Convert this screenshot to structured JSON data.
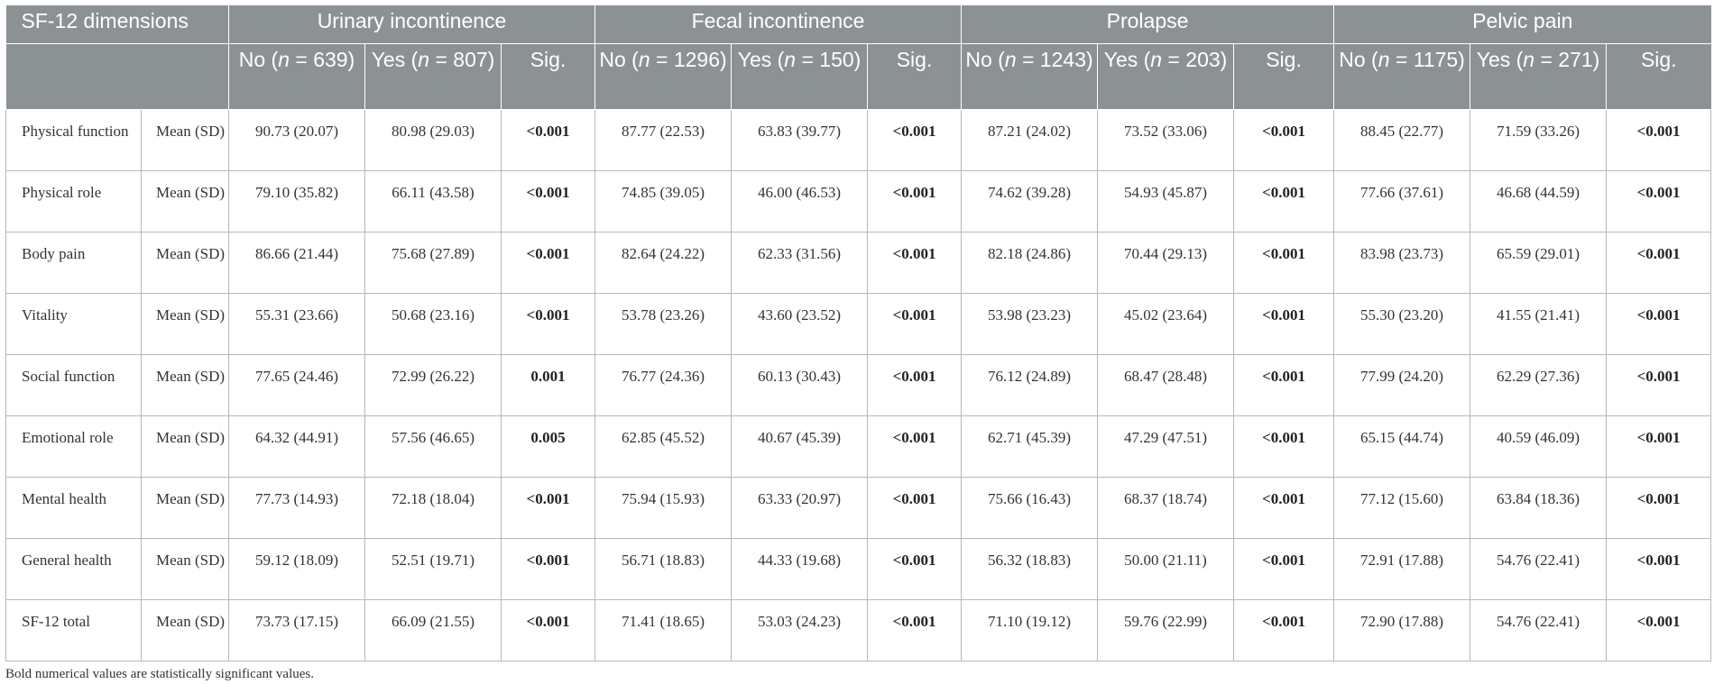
{
  "header": {
    "dim_label": "SF-12 dimensions",
    "groups": [
      "Urinary incontinence",
      "Fecal incontinence",
      "Prolapse",
      "Pelvic pain"
    ],
    "sub": [
      {
        "no_pre": "No (",
        "no_n": "n",
        "no_post": " = 639)",
        "yes_pre": "Yes (",
        "yes_n": "n",
        "yes_post": " = 807)",
        "sig": "Sig."
      },
      {
        "no_pre": "No (",
        "no_n": "n",
        "no_post": " = 1296)",
        "yes_pre": "Yes (",
        "yes_n": "n",
        "yes_post": " = 150)",
        "sig": "Sig."
      },
      {
        "no_pre": "No (",
        "no_n": "n",
        "no_post": " = 1243)",
        "yes_pre": "Yes (",
        "yes_n": "n",
        "yes_post": " = 203)",
        "sig": "Sig."
      },
      {
        "no_pre": "No (",
        "no_n": "n",
        "no_post": " = 1175)",
        "yes_pre": "Yes (",
        "yes_n": "n",
        "yes_post": " = 271)",
        "sig": "Sig."
      }
    ]
  },
  "rows": [
    {
      "name": "Physical function",
      "stat": "Mean (SD)",
      "cells": [
        "90.73 (20.07)",
        "80.98 (29.03)",
        "<0.001",
        "87.77 (22.53)",
        "63.83 (39.77)",
        "<0.001",
        "87.21 (24.02)",
        "73.52 (33.06)",
        "<0.001",
        "88.45 (22.77)",
        "71.59 (33.26)",
        "<0.001"
      ]
    },
    {
      "name": "Physical role",
      "stat": "Mean (SD)",
      "cells": [
        "79.10 (35.82)",
        "66.11 (43.58)",
        "<0.001",
        "74.85 (39.05)",
        "46.00 (46.53)",
        "<0.001",
        "74.62 (39.28)",
        "54.93 (45.87)",
        "<0.001",
        "77.66 (37.61)",
        "46.68 (44.59)",
        "<0.001"
      ]
    },
    {
      "name": "Body pain",
      "stat": "Mean (SD)",
      "cells": [
        "86.66 (21.44)",
        "75.68 (27.89)",
        "<0.001",
        "82.64 (24.22)",
        "62.33 (31.56)",
        "<0.001",
        "82.18 (24.86)",
        "70.44 (29.13)",
        "<0.001",
        "83.98 (23.73)",
        "65.59 (29.01)",
        "<0.001"
      ]
    },
    {
      "name": "Vitality",
      "stat": "Mean (SD)",
      "cells": [
        "55.31 (23.66)",
        "50.68 (23.16)",
        "<0.001",
        "53.78 (23.26)",
        "43.60 (23.52)",
        "<0.001",
        "53.98 (23.23)",
        "45.02 (23.64)",
        "<0.001",
        "55.30 (23.20)",
        "41.55 (21.41)",
        "<0.001"
      ]
    },
    {
      "name": "Social function",
      "stat": "Mean (SD)",
      "cells": [
        "77.65 (24.46)",
        "72.99 (26.22)",
        "0.001",
        "76.77 (24.36)",
        "60.13 (30.43)",
        "<0.001",
        "76.12 (24.89)",
        "68.47 (28.48)",
        "<0.001",
        "77.99 (24.20)",
        "62.29 (27.36)",
        "<0.001"
      ]
    },
    {
      "name": "Emotional role",
      "stat": "Mean (SD)",
      "cells": [
        "64.32 (44.91)",
        "57.56 (46.65)",
        "0.005",
        "62.85 (45.52)",
        "40.67 (45.39)",
        "<0.001",
        "62.71 (45.39)",
        "47.29 (47.51)",
        "<0.001",
        "65.15 (44.74)",
        "40.59 (46.09)",
        "<0.001"
      ]
    },
    {
      "name": "Mental health",
      "stat": "Mean (SD)",
      "cells": [
        "77.73 (14.93)",
        "72.18 (18.04)",
        "<0.001",
        "75.94 (15.93)",
        "63.33 (20.97)",
        "<0.001",
        "75.66 (16.43)",
        "68.37 (18.74)",
        "<0.001",
        "77.12 (15.60)",
        "63.84 (18.36)",
        "<0.001"
      ]
    },
    {
      "name": "General health",
      "stat": "Mean (SD)",
      "cells": [
        "59.12 (18.09)",
        "52.51 (19.71)",
        "<0.001",
        "56.71 (18.83)",
        "44.33 (19.68)",
        "<0.001",
        "56.32 (18.83)",
        "50.00 (21.11)",
        "<0.001",
        "72.91 (17.88)",
        "54.76 (22.41)",
        "<0.001"
      ]
    },
    {
      "name": "SF-12 total",
      "stat": "Mean (SD)",
      "cells": [
        "73.73 (17.15)",
        "66.09 (21.55)",
        "<0.001",
        "71.41 (18.65)",
        "53.03 (24.23)",
        "<0.001",
        "71.10 (19.12)",
        "59.76 (22.99)",
        "<0.001",
        "72.90 (17.88)",
        "54.76 (22.41)",
        "<0.001"
      ]
    }
  ],
  "footnote": "Bold numerical values are statistically significant values."
}
